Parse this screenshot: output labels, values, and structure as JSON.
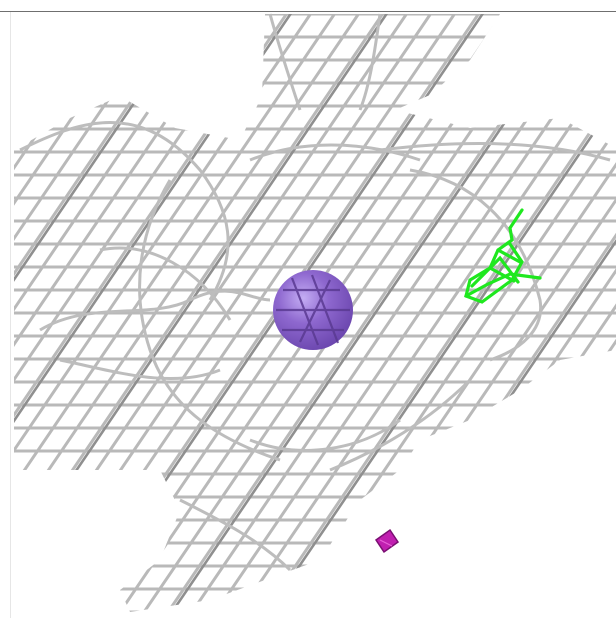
{
  "scene": {
    "background": "#ffffff",
    "mesh_color": "#b9b9b9",
    "mesh_shadow_color": "#6e6e6e",
    "sphere_color": "#8a63c8",
    "sphere_highlight": "#b79cf0",
    "ligand_color": "#1fe81f",
    "fragment_color": "#c01fb0"
  },
  "objects": [
    {
      "name": "electron-density-mesh",
      "kind": "wireframe isosurface"
    },
    {
      "name": "ion-sphere",
      "kind": "sphere"
    },
    {
      "name": "ligand-wire",
      "kind": "green stick model"
    },
    {
      "name": "small-fragment",
      "kind": "magenta fragment"
    }
  ]
}
